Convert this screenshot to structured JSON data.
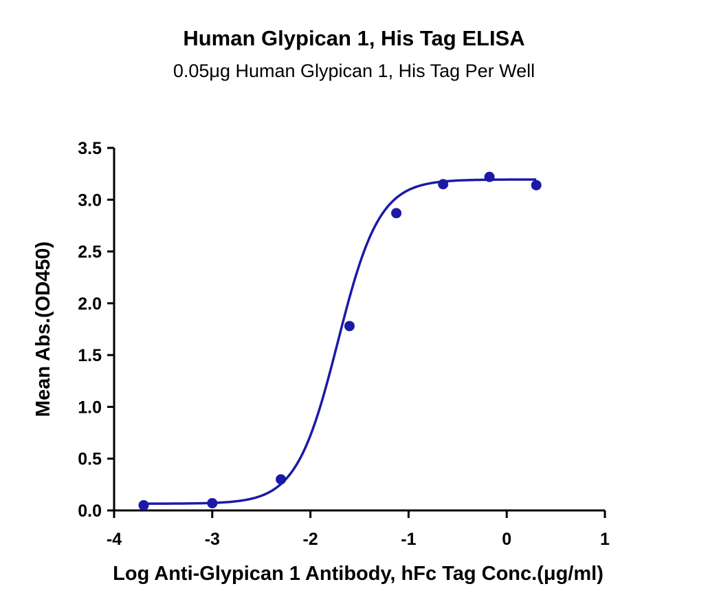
{
  "chart_data": {
    "type": "scatter",
    "title": "Human Glypican 1, His Tag ELISA",
    "subtitle": "0.05μg Human Glypican 1, His Tag Per Well",
    "xlabel": "Log Anti-Glypican 1 Antibody, hFc Tag Conc.(μg/ml)",
    "ylabel": "Mean Abs.(OD450)",
    "xlim": [
      -4,
      1
    ],
    "ylim": [
      0,
      3.5
    ],
    "xticks": [
      "-4",
      "-3",
      "-2",
      "-1",
      "0",
      "1"
    ],
    "yticks": [
      "0.0",
      "0.5",
      "1.0",
      "1.5",
      "2.0",
      "2.5",
      "3.0",
      "3.5"
    ],
    "grid": false,
    "series": [
      {
        "color": "#1a1aa6",
        "x": [
          -3.699,
          -3.0,
          -2.301,
          -1.602,
          -1.125,
          -0.648,
          -0.176,
          0.301
        ],
        "y": [
          0.05,
          0.07,
          0.3,
          1.78,
          2.87,
          3.15,
          3.22,
          3.14
        ],
        "fit": "4PL sigmoid"
      }
    ]
  }
}
